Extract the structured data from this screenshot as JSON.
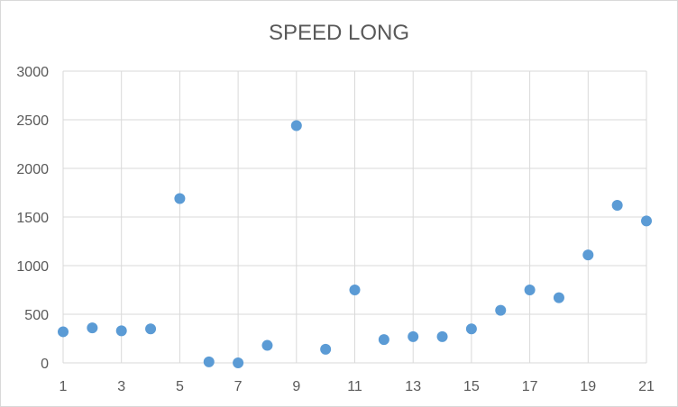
{
  "chart_data": {
    "type": "scatter",
    "title": "SPEED LONG",
    "xlabel": "",
    "ylabel": "",
    "xlim": [
      1,
      21
    ],
    "ylim": [
      0,
      3000
    ],
    "x_ticks": [
      "1",
      "3",
      "5",
      "7",
      "9",
      "11",
      "13",
      "15",
      "17",
      "19",
      "21"
    ],
    "y_ticks": [
      "0",
      "500",
      "1000",
      "1500",
      "2000",
      "2500",
      "3000"
    ],
    "grid": true,
    "legend": "none",
    "marker_color": "#5b9bd5",
    "gridline_color": "#d9d9d9",
    "text_color": "#595959",
    "series": [
      {
        "x": [
          1,
          2,
          3,
          4,
          5,
          6,
          7,
          8,
          9,
          10,
          11,
          12,
          13,
          14,
          15,
          16,
          17,
          18,
          19,
          20,
          21
        ],
        "y": [
          320,
          360,
          330,
          350,
          1690,
          10,
          0,
          180,
          2440,
          140,
          750,
          240,
          270,
          270,
          350,
          540,
          750,
          670,
          1110,
          1620,
          1460
        ]
      }
    ]
  }
}
